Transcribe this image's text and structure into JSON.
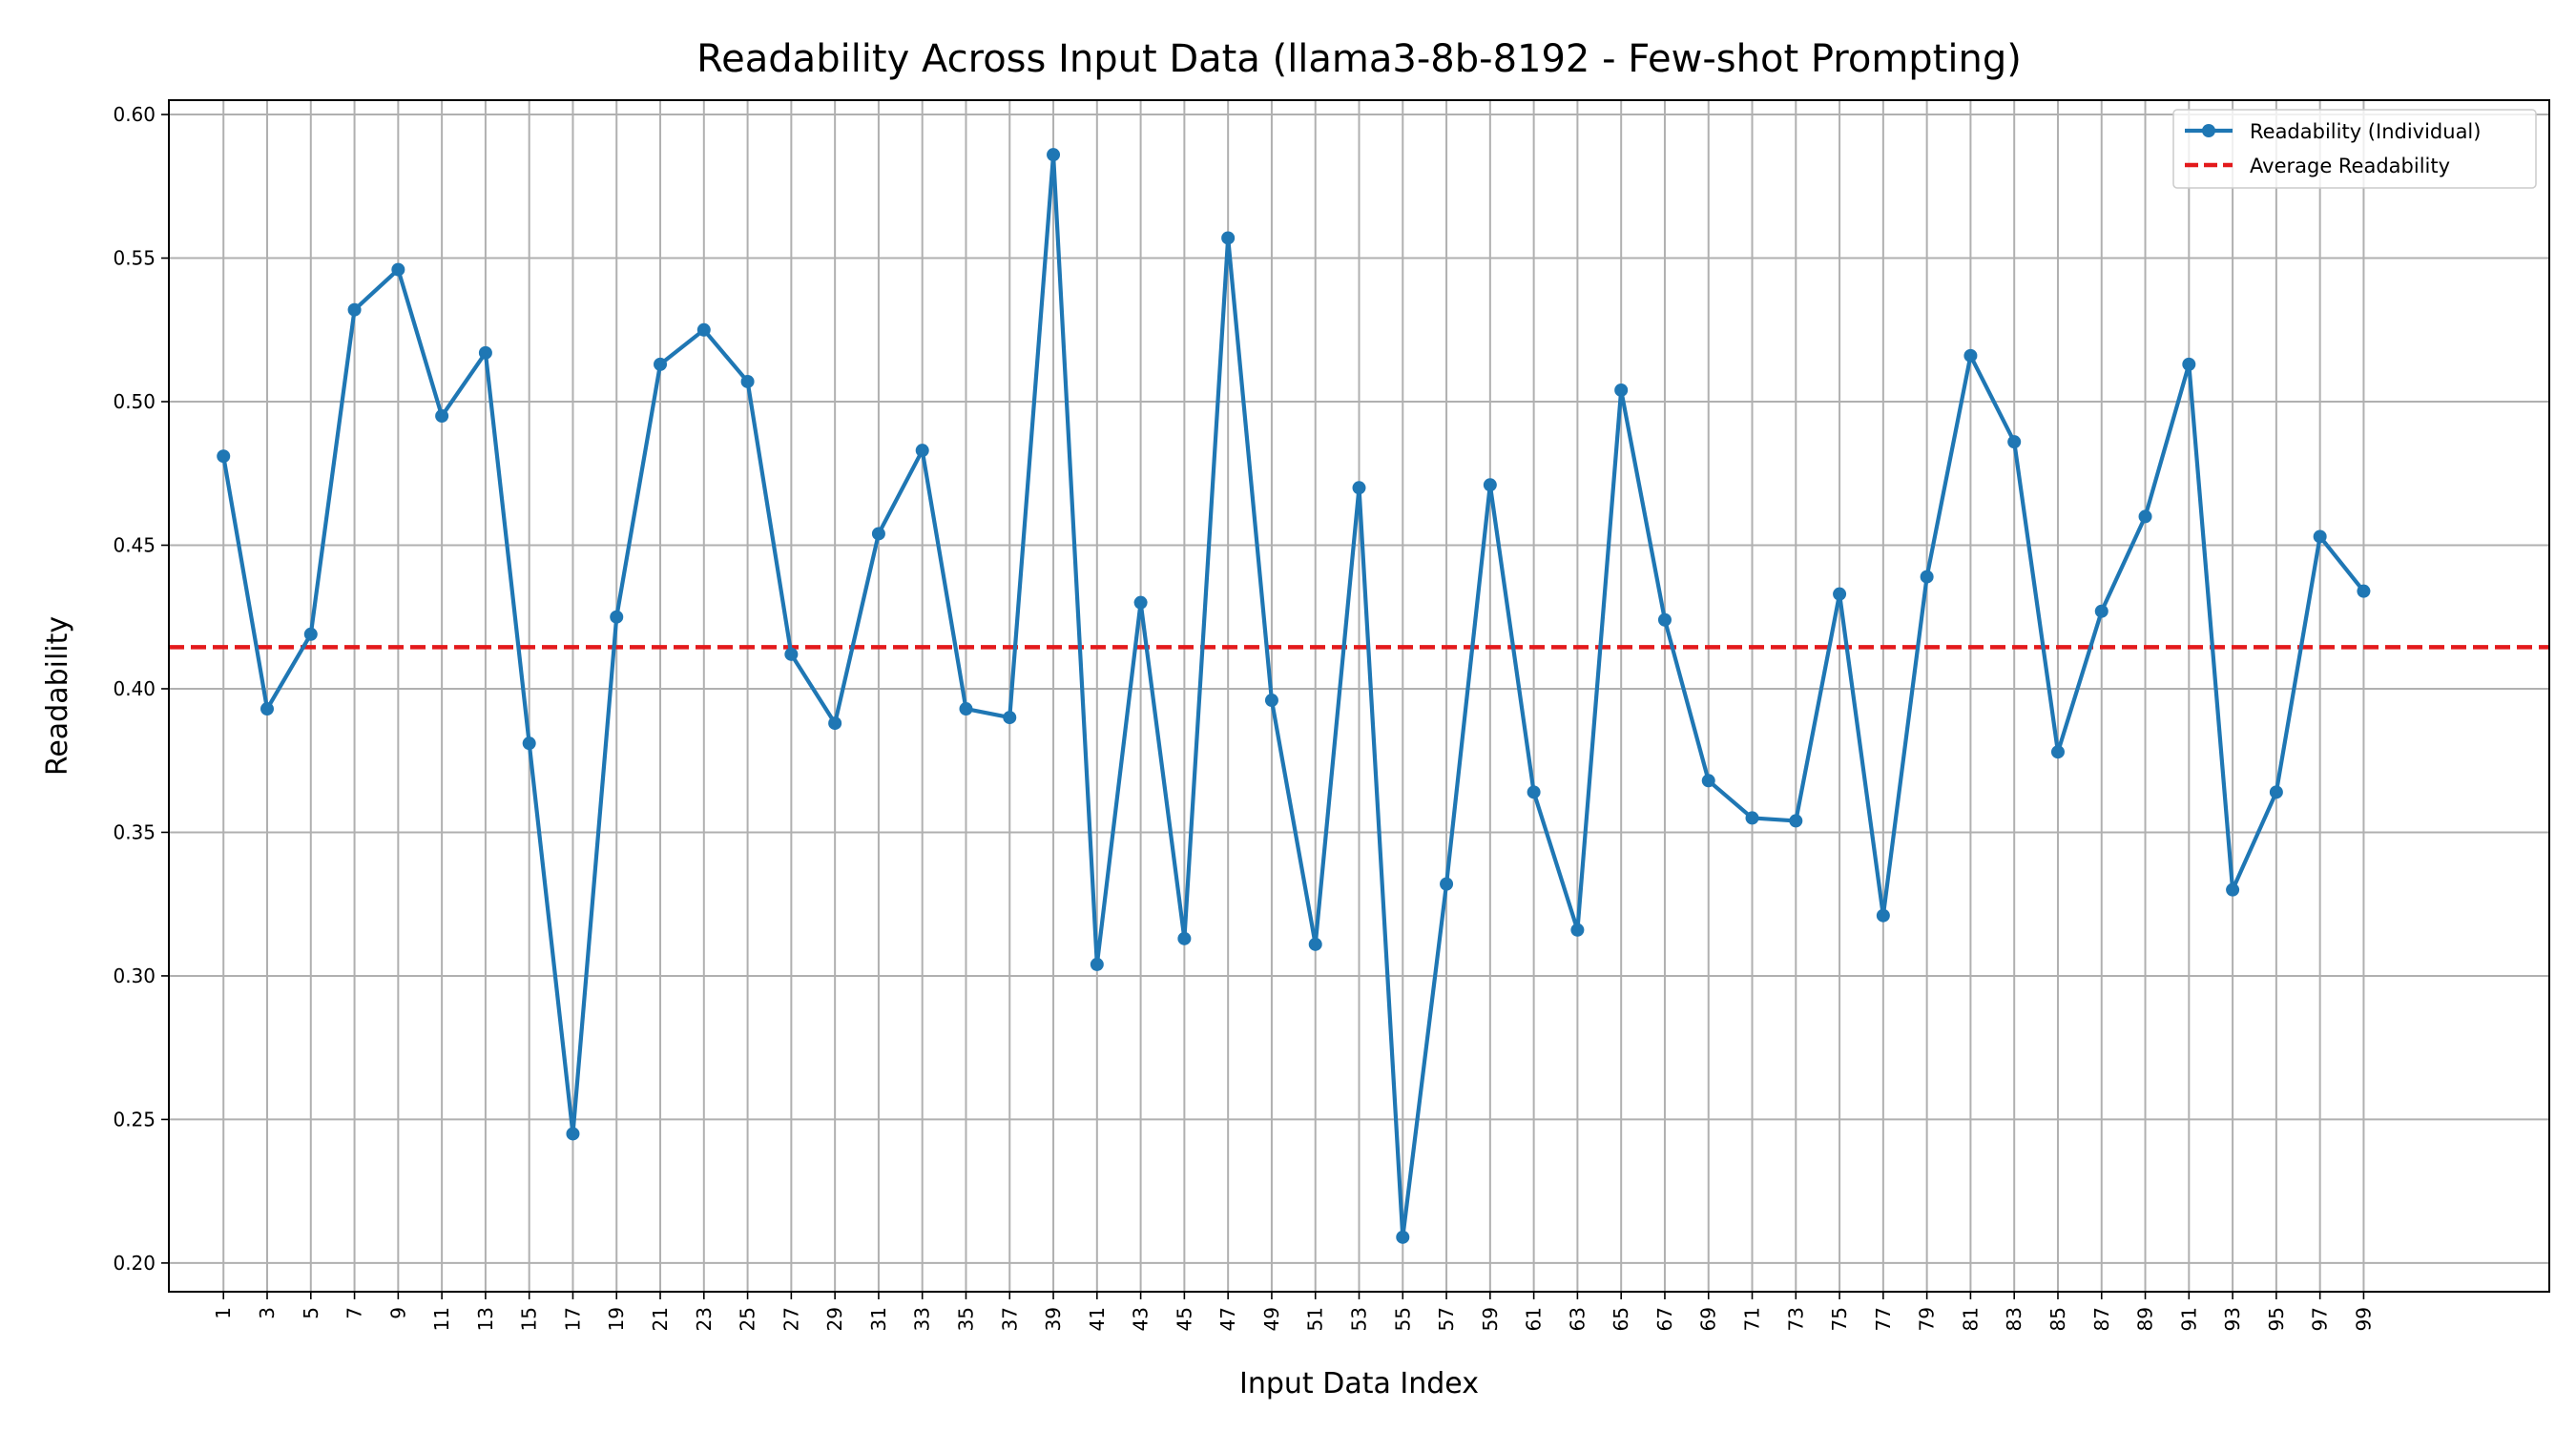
{
  "chart_data": {
    "type": "line",
    "title": "Readability Across Input Data (llama3-8b-8192 - Few-shot Prompting)",
    "xlabel": "Input Data Index",
    "ylabel": "Readability",
    "xlim": [
      -1.5,
      107.5
    ],
    "ylim": [
      0.19,
      0.605
    ],
    "x_ticks": [
      1,
      3,
      5,
      7,
      9,
      11,
      13,
      15,
      17,
      19,
      21,
      23,
      25,
      27,
      29,
      31,
      33,
      35,
      37,
      39,
      41,
      43,
      45,
      47,
      49,
      51,
      53,
      55,
      57,
      59,
      61,
      63,
      65,
      67,
      69,
      71,
      73,
      75,
      77,
      79,
      81,
      83,
      85,
      87,
      89,
      91,
      93,
      95,
      97,
      99
    ],
    "y_ticks": [
      0.2,
      0.25,
      0.3,
      0.35,
      0.4,
      0.45,
      0.5,
      0.55,
      0.6
    ],
    "grid": true,
    "legend_position": "top-right",
    "series": [
      {
        "name": "Readability (Individual)",
        "color": "#1f77b4",
        "style": "line-with-markers",
        "x": [
          1,
          3,
          5,
          7,
          9,
          11,
          13,
          15,
          17,
          19,
          21,
          23,
          25,
          27,
          29,
          31,
          33,
          35,
          37,
          39,
          41,
          43,
          45,
          47,
          49,
          51,
          53,
          55,
          57,
          59,
          61,
          63,
          65,
          67,
          69,
          71,
          73,
          75,
          77,
          79,
          81,
          83,
          85,
          87,
          89,
          91,
          93,
          95,
          97,
          99
        ],
        "values": [
          0.481,
          0.393,
          0.419,
          0.532,
          0.546,
          0.495,
          0.517,
          0.381,
          0.245,
          0.425,
          0.513,
          0.525,
          0.507,
          0.412,
          0.388,
          0.454,
          0.483,
          0.393,
          0.39,
          0.586,
          0.304,
          0.43,
          0.313,
          0.557,
          0.396,
          0.311,
          0.47,
          0.209,
          0.332,
          0.471,
          0.364,
          0.316,
          0.504,
          0.424,
          0.368,
          0.355,
          0.354,
          0.433,
          0.321,
          0.439,
          0.516,
          0.486,
          0.378,
          0.427,
          0.46,
          0.513,
          0.33,
          0.364,
          0.453,
          0.434
        ]
      },
      {
        "name": "Average Readability",
        "color": "#e31a1c",
        "style": "dashed",
        "value": 0.4145
      }
    ]
  }
}
